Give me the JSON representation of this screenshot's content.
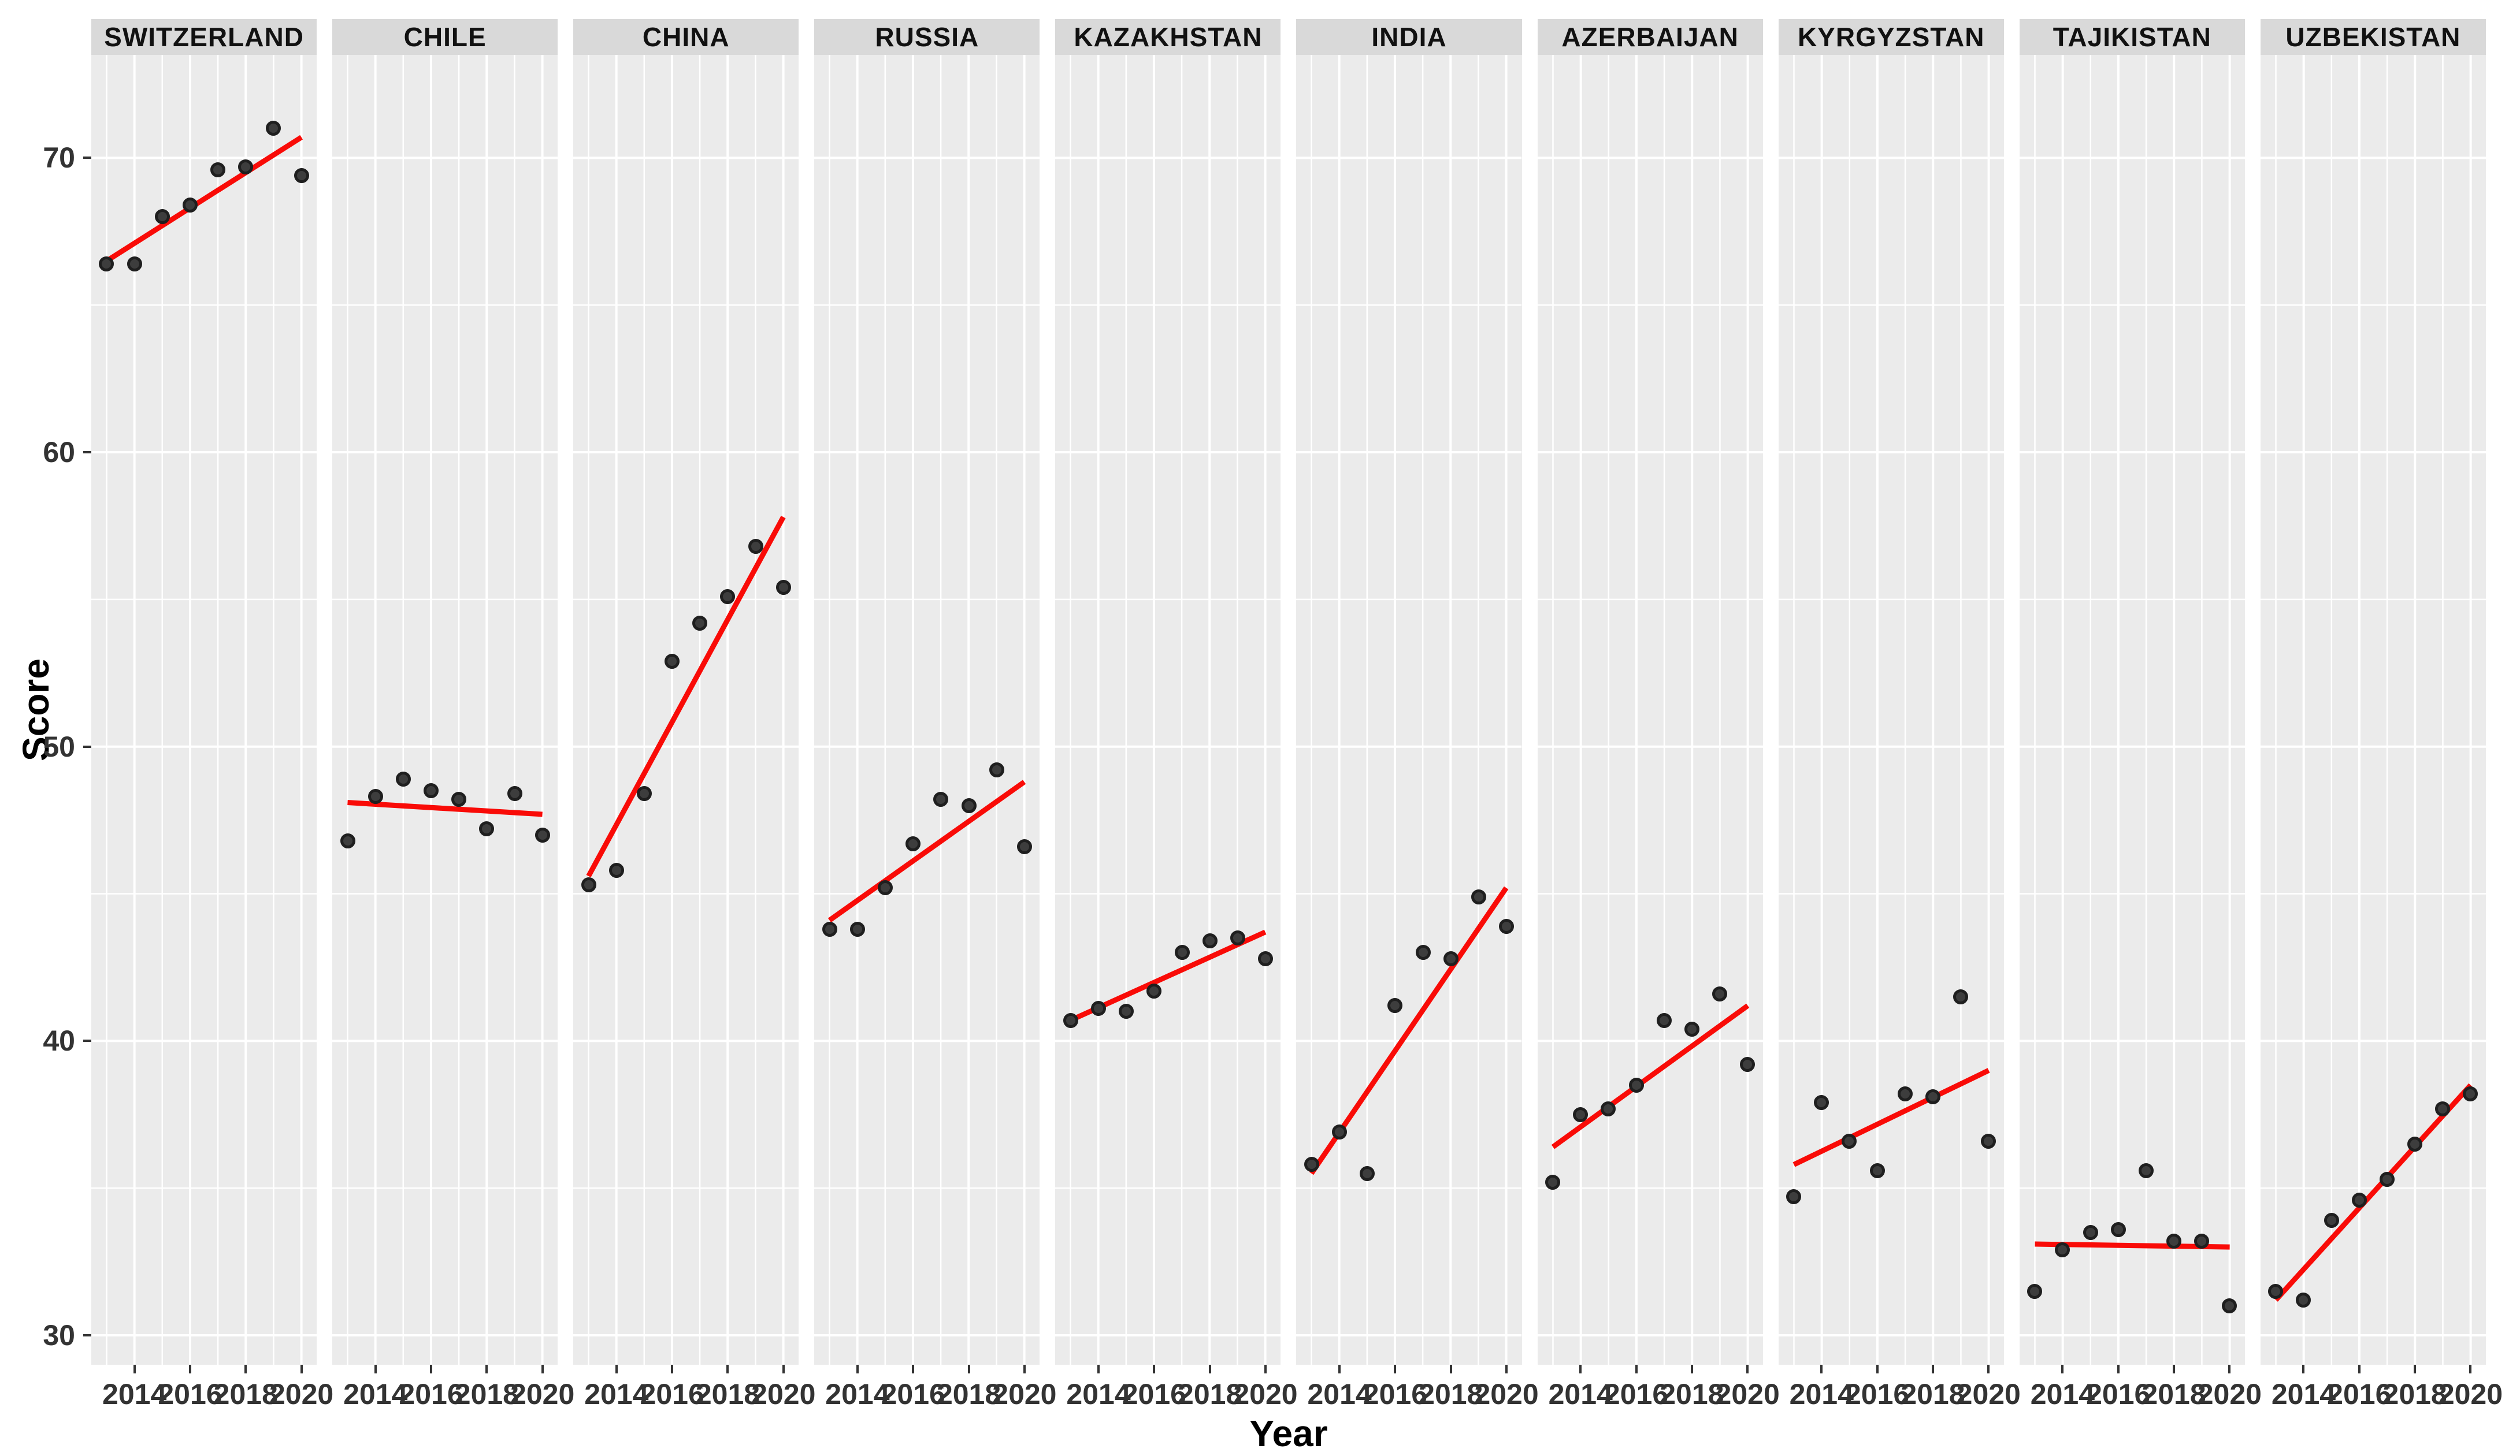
{
  "chart_data": {
    "type": "scatter",
    "title": "",
    "xlabel": "Year",
    "ylabel": "Score",
    "x": [
      2013,
      2014,
      2015,
      2016,
      2017,
      2018,
      2019,
      2020
    ],
    "x_ticks": [
      2014,
      2016,
      2018,
      2020
    ],
    "y_ticks": [
      30,
      40,
      50,
      60,
      70
    ],
    "y_minor_gridlines": [
      35,
      45,
      55,
      65
    ],
    "xlim": [
      2012.45,
      2020.55
    ],
    "ylim": [
      29.0,
      73.5
    ],
    "grid": "on",
    "legend": "none",
    "facets": [
      {
        "label": "SWITZERLAND",
        "values": [
          66.4,
          66.4,
          68.0,
          68.4,
          69.6,
          69.7,
          71.0,
          69.4
        ],
        "trend": {
          "x1": 2013,
          "y1": 66.5,
          "x2": 2020,
          "y2": 70.7
        }
      },
      {
        "label": "CHILE",
        "values": [
          46.8,
          48.3,
          48.9,
          48.5,
          48.2,
          47.2,
          48.4,
          47.0
        ],
        "trend": {
          "x1": 2013,
          "y1": 48.1,
          "x2": 2020,
          "y2": 47.7
        }
      },
      {
        "label": "CHINA",
        "values": [
          45.3,
          45.8,
          48.4,
          52.9,
          54.2,
          55.1,
          56.8,
          55.4
        ],
        "trend": {
          "x1": 2013,
          "y1": 45.6,
          "x2": 2020,
          "y2": 57.8
        }
      },
      {
        "label": "RUSSIA",
        "values": [
          43.8,
          43.8,
          45.2,
          46.7,
          48.2,
          48.0,
          49.2,
          46.6
        ],
        "trend": {
          "x1": 2013,
          "y1": 44.1,
          "x2": 2020,
          "y2": 48.8
        }
      },
      {
        "label": "KAZAKHSTAN",
        "values": [
          40.7,
          41.1,
          41.0,
          41.7,
          43.0,
          43.4,
          43.5,
          42.8
        ],
        "trend": {
          "x1": 2013,
          "y1": 40.7,
          "x2": 2020,
          "y2": 43.7
        }
      },
      {
        "label": "INDIA",
        "values": [
          35.8,
          36.9,
          35.5,
          41.2,
          43.0,
          42.8,
          44.9,
          43.9
        ],
        "trend": {
          "x1": 2013,
          "y1": 35.5,
          "x2": 2020,
          "y2": 45.2
        }
      },
      {
        "label": "AZERBAIJAN",
        "values": [
          35.2,
          37.5,
          37.7,
          38.5,
          40.7,
          40.4,
          41.6,
          39.2
        ],
        "trend": {
          "x1": 2013,
          "y1": 36.4,
          "x2": 2020,
          "y2": 41.2
        }
      },
      {
        "label": "KYRGYZSTAN",
        "values": [
          34.7,
          37.9,
          36.6,
          35.6,
          38.2,
          38.1,
          41.5,
          36.6
        ],
        "trend": {
          "x1": 2013,
          "y1": 35.8,
          "x2": 2020,
          "y2": 39.0
        }
      },
      {
        "label": "TAJIKISTAN",
        "values": [
          31.5,
          32.9,
          33.5,
          33.6,
          35.6,
          33.2,
          33.2,
          31.0
        ],
        "trend": {
          "x1": 2013,
          "y1": 33.1,
          "x2": 2020,
          "y2": 33.0
        }
      },
      {
        "label": "UZBEKISTAN",
        "values": [
          31.5,
          31.2,
          33.9,
          34.6,
          35.3,
          36.5,
          37.7,
          38.2
        ],
        "trend": {
          "x1": 2013,
          "y1": 31.2,
          "x2": 2020,
          "y2": 38.5
        }
      }
    ],
    "colors": {
      "trend_line": "#f90b07",
      "point_fill": "#3d3d3d",
      "point_border": "#1f1f1f",
      "panel_bg": "#ebebeb",
      "strip_bg": "#d9d9d9",
      "gridline": "#ffffff",
      "tick_text": "#333333",
      "axis_title_text": "#000000"
    }
  }
}
